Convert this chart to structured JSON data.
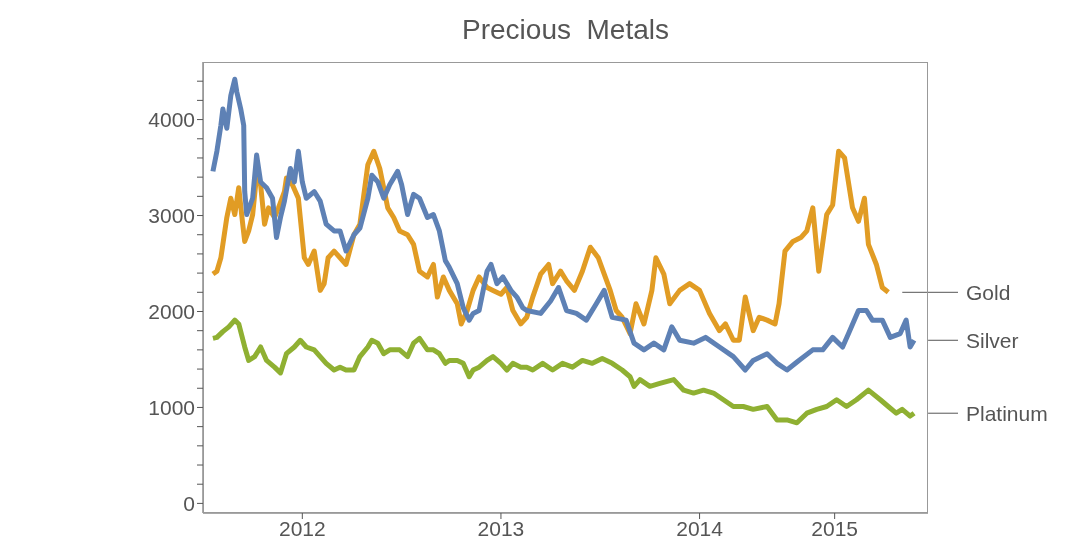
{
  "chart_data": {
    "type": "line",
    "title": "Precious  Metals",
    "legend": false,
    "marker": "none",
    "line_style": "solid",
    "xlim": [
      2011.5,
      2015.15
    ],
    "xticks": [
      2012,
      2013,
      2014,
      {
        "value": 2014.68,
        "label": "2015"
      }
    ],
    "ylim": [
      -100,
      4600
    ],
    "yticks": [
      0,
      {
        "value": 200,
        "label": null
      },
      {
        "value": 400,
        "label": null
      },
      {
        "value": 600,
        "label": null
      },
      {
        "value": 800,
        "label": null
      },
      1000,
      {
        "value": 1200,
        "label": null
      },
      {
        "value": 1400,
        "label": null
      },
      {
        "value": 1600,
        "label": null
      },
      {
        "value": 1800,
        "label": null
      },
      2000,
      {
        "value": 2200,
        "label": null
      },
      {
        "value": 2400,
        "label": null
      },
      {
        "value": 2600,
        "label": null
      },
      {
        "value": 2800,
        "label": null
      },
      3000,
      {
        "value": 3200,
        "label": null
      },
      {
        "value": 3400,
        "label": null
      },
      {
        "value": 3600,
        "label": null
      },
      {
        "value": 3800,
        "label": null
      },
      4000,
      {
        "value": 4200,
        "label": null
      },
      {
        "value": 4400,
        "label": null
      }
    ],
    "series": [
      {
        "name": "Gold",
        "color": "#e19c24",
        "x": [
          2011.55,
          2011.57,
          2011.59,
          2011.6,
          2011.62,
          2011.64,
          2011.66,
          2011.68,
          2011.7,
          2011.71,
          2011.73,
          2011.75,
          2011.77,
          2011.79,
          2011.81,
          2011.83,
          2011.86,
          2011.88,
          2011.91,
          2011.92,
          2011.95,
          2011.98,
          2012.01,
          2012.03,
          2012.06,
          2012.09,
          2012.11,
          2012.13,
          2012.16,
          2012.19,
          2012.22,
          2012.26,
          2012.29,
          2012.33,
          2012.36,
          2012.39,
          2012.43,
          2012.46,
          2012.49,
          2012.53,
          2012.56,
          2012.59,
          2012.63,
          2012.66,
          2012.68,
          2012.71,
          2012.74,
          2012.78,
          2012.8,
          2012.83,
          2012.86,
          2012.89,
          2012.93,
          2012.96,
          2013.0,
          2013.03,
          2013.06,
          2013.1,
          2013.13,
          2013.16,
          2013.2,
          2013.24,
          2013.26,
          2013.3,
          2013.33,
          2013.37,
          2013.41,
          2013.45,
          2013.49,
          2013.52,
          2013.55,
          2013.58,
          2013.61,
          2013.65,
          2013.68,
          2013.72,
          2013.76,
          2013.78,
          2013.82,
          2013.85,
          2013.9,
          2013.95,
          2014.0,
          2014.05,
          2014.1,
          2014.13,
          2014.17,
          2014.2,
          2014.23,
          2014.27,
          2014.3,
          2014.34,
          2014.38,
          2014.4,
          2014.43,
          2014.47,
          2014.51,
          2014.54,
          2014.57,
          2014.6,
          2014.64,
          2014.67,
          2014.7,
          2014.73,
          2014.77,
          2014.8,
          2014.83,
          2014.85,
          2014.89,
          2014.92,
          2014.95
        ],
        "values": [
          2390,
          2420,
          2560,
          2700,
          2980,
          3180,
          3010,
          3290,
          2910,
          2730,
          2840,
          3010,
          3420,
          3320,
          2910,
          3080,
          2980,
          3080,
          3250,
          3390,
          3320,
          3180,
          2560,
          2490,
          2630,
          2220,
          2290,
          2560,
          2630,
          2560,
          2490,
          2800,
          2910,
          3530,
          3670,
          3490,
          3080,
          2980,
          2840,
          2800,
          2700,
          2420,
          2360,
          2490,
          2150,
          2360,
          2220,
          2080,
          1870,
          2010,
          2220,
          2360,
          2250,
          2220,
          2180,
          2250,
          2010,
          1870,
          1940,
          2150,
          2390,
          2490,
          2290,
          2420,
          2320,
          2220,
          2420,
          2670,
          2560,
          2390,
          2220,
          2010,
          1940,
          1770,
          2080,
          1870,
          2220,
          2560,
          2390,
          2080,
          2220,
          2290,
          2220,
          1980,
          1800,
          1870,
          1700,
          1700,
          2150,
          1800,
          1940,
          1910,
          1870,
          2080,
          2630,
          2730,
          2770,
          2840,
          3080,
          2420,
          3010,
          3110,
          3670,
          3600,
          3080,
          2940,
          3180,
          2700,
          2490,
          2250,
          2200
        ]
      },
      {
        "name": "Silver",
        "color": "#5e81b5",
        "x": [
          2011.55,
          2011.57,
          2011.59,
          2011.6,
          2011.62,
          2011.64,
          2011.66,
          2011.67,
          2011.69,
          2011.705,
          2011.71,
          2011.72,
          2011.75,
          2011.77,
          2011.79,
          2011.82,
          2011.85,
          2011.87,
          2011.89,
          2011.91,
          2011.94,
          2011.96,
          2011.98,
          2012.0,
          2012.02,
          2012.06,
          2012.09,
          2012.12,
          2012.16,
          2012.19,
          2012.22,
          2012.26,
          2012.29,
          2012.33,
          2012.35,
          2012.38,
          2012.41,
          2012.44,
          2012.48,
          2012.5,
          2012.53,
          2012.56,
          2012.59,
          2012.63,
          2012.66,
          2012.69,
          2012.72,
          2012.74,
          2012.78,
          2012.81,
          2012.84,
          2012.86,
          2012.89,
          2012.93,
          2012.95,
          2012.98,
          2013.01,
          2013.05,
          2013.08,
          2013.11,
          2013.13,
          2013.2,
          2013.25,
          2013.29,
          2013.33,
          2013.38,
          2013.43,
          2013.48,
          2013.52,
          2013.56,
          2013.63,
          2013.67,
          2013.72,
          2013.77,
          2013.82,
          2013.86,
          2013.9,
          2013.97,
          2014.03,
          2014.1,
          2014.17,
          2014.23,
          2014.27,
          2014.34,
          2014.39,
          2014.44,
          2014.5,
          2014.57,
          2014.62,
          2014.67,
          2014.72,
          2014.75,
          2014.8,
          2014.84,
          2014.87,
          2014.92,
          2014.96,
          2015.01,
          2015.04,
          2015.06,
          2015.08
        ],
        "values": [
          3460,
          3670,
          3940,
          4110,
          3910,
          4250,
          4420,
          4290,
          4110,
          3940,
          3250,
          3010,
          3180,
          3630,
          3350,
          3290,
          3180,
          2770,
          2980,
          3150,
          3490,
          3350,
          3670,
          3350,
          3180,
          3250,
          3150,
          2910,
          2840,
          2840,
          2630,
          2800,
          2870,
          3180,
          3420,
          3350,
          3180,
          3320,
          3460,
          3320,
          3010,
          3220,
          3180,
          2980,
          3010,
          2840,
          2530,
          2460,
          2290,
          2040,
          1910,
          1980,
          2010,
          2420,
          2490,
          2290,
          2360,
          2220,
          2150,
          2040,
          2010,
          1980,
          2110,
          2250,
          2010,
          1980,
          1910,
          2080,
          2220,
          1940,
          1910,
          1670,
          1600,
          1670,
          1600,
          1840,
          1700,
          1670,
          1730,
          1630,
          1530,
          1390,
          1490,
          1560,
          1460,
          1390,
          1490,
          1600,
          1600,
          1730,
          1630,
          1770,
          2010,
          2010,
          1910,
          1910,
          1730,
          1770,
          1910,
          1630,
          1700
        ]
      },
      {
        "name": "Platinum",
        "color": "#8fb032",
        "x": [
          2011.55,
          2011.57,
          2011.6,
          2011.63,
          2011.66,
          2011.68,
          2011.71,
          2011.73,
          2011.76,
          2011.79,
          2011.82,
          2011.86,
          2011.89,
          2011.92,
          2011.96,
          2011.99,
          2012.02,
          2012.06,
          2012.09,
          2012.12,
          2012.16,
          2012.19,
          2012.22,
          2012.26,
          2012.29,
          2012.33,
          2012.35,
          2012.38,
          2012.41,
          2012.44,
          2012.49,
          2012.53,
          2012.56,
          2012.59,
          2012.63,
          2012.66,
          2012.69,
          2012.72,
          2012.74,
          2012.78,
          2012.81,
          2012.84,
          2012.86,
          2012.89,
          2012.93,
          2012.96,
          2013.0,
          2013.03,
          2013.06,
          2013.1,
          2013.13,
          2013.16,
          2013.21,
          2013.26,
          2013.31,
          2013.36,
          2013.41,
          2013.46,
          2013.51,
          2013.56,
          2013.61,
          2013.65,
          2013.67,
          2013.7,
          2013.75,
          2013.8,
          2013.87,
          2013.92,
          2013.97,
          2014.02,
          2014.07,
          2014.12,
          2014.17,
          2014.22,
          2014.27,
          2014.34,
          2014.39,
          2014.44,
          2014.49,
          2014.54,
          2014.59,
          2014.64,
          2014.69,
          2014.74,
          2014.79,
          2014.85,
          2014.91,
          2014.95,
          2014.99,
          2015.02,
          2015.06,
          2015.08
        ],
        "values": [
          1720,
          1730,
          1790,
          1840,
          1910,
          1870,
          1630,
          1490,
          1530,
          1630,
          1490,
          1420,
          1360,
          1560,
          1630,
          1700,
          1630,
          1600,
          1530,
          1460,
          1390,
          1420,
          1390,
          1390,
          1530,
          1630,
          1700,
          1670,
          1560,
          1600,
          1600,
          1530,
          1670,
          1720,
          1600,
          1600,
          1560,
          1460,
          1490,
          1490,
          1460,
          1320,
          1390,
          1420,
          1490,
          1530,
          1460,
          1390,
          1460,
          1420,
          1420,
          1390,
          1460,
          1390,
          1460,
          1420,
          1490,
          1460,
          1510,
          1460,
          1390,
          1320,
          1220,
          1290,
          1220,
          1250,
          1290,
          1180,
          1150,
          1180,
          1150,
          1080,
          1010,
          1010,
          980,
          1010,
          870,
          870,
          840,
          940,
          980,
          1010,
          1080,
          1010,
          1080,
          1180,
          1080,
          1010,
          940,
          980,
          910,
          940
        ]
      }
    ]
  }
}
